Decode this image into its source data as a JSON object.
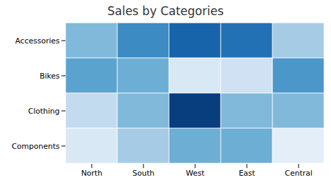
{
  "chart_data": {
    "type": "heatmap",
    "title": "Sales by Categories",
    "categories": [
      "North",
      "South",
      "West",
      "East",
      "Central"
    ],
    "rows": [
      "Accessories",
      "Bikes",
      "Clothing",
      "Components"
    ],
    "values": [
      [
        45,
        65,
        80,
        75,
        35
      ],
      [
        55,
        50,
        15,
        20,
        60
      ],
      [
        25,
        45,
        95,
        45,
        45
      ],
      [
        15,
        35,
        50,
        50,
        10
      ]
    ],
    "color": "Blues",
    "color_range": [
      0,
      100
    ],
    "grid": false
  }
}
